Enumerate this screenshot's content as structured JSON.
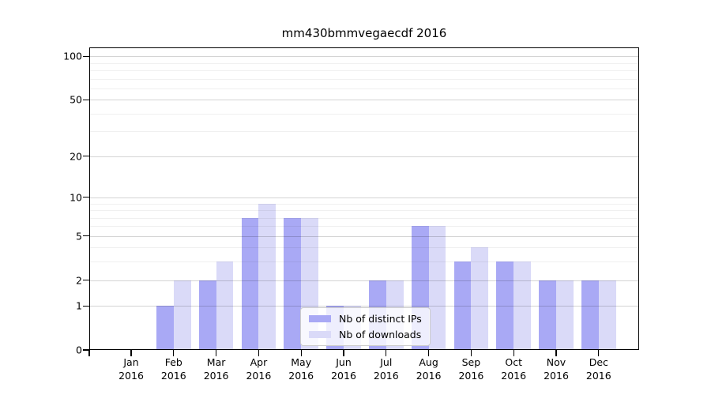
{
  "figure": {
    "title": "mm430bmmvegaecdf 2016",
    "background_color": "#ffffff",
    "axis_color": "#000000"
  },
  "legend": {
    "position": "lower center",
    "items": [
      {
        "label": "Nb of distinct IPs",
        "color": "#a9a9f5"
      },
      {
        "label": "Nb of downloads",
        "color": "#dadaf8"
      }
    ]
  },
  "chart_data": {
    "type": "bar",
    "title": "mm430bmmvegaecdf 2016",
    "xlabel": "",
    "ylabel": "",
    "x_labels": [
      {
        "month": "Jan",
        "year": "2016"
      },
      {
        "month": "Feb",
        "year": "2016"
      },
      {
        "month": "Mar",
        "year": "2016"
      },
      {
        "month": "Apr",
        "year": "2016"
      },
      {
        "month": "May",
        "year": "2016"
      },
      {
        "month": "Jun",
        "year": "2016"
      },
      {
        "month": "Jul",
        "year": "2016"
      },
      {
        "month": "Aug",
        "year": "2016"
      },
      {
        "month": "Sep",
        "year": "2016"
      },
      {
        "month": "Oct",
        "year": "2016"
      },
      {
        "month": "Nov",
        "year": "2016"
      },
      {
        "month": "Dec",
        "year": "2016"
      }
    ],
    "series": [
      {
        "name": "Nb of distinct IPs",
        "color": "#a9a9f5",
        "values": [
          0,
          1,
          2,
          7,
          7,
          1,
          2,
          6,
          3,
          3,
          2,
          2
        ]
      },
      {
        "name": "Nb of downloads",
        "color": "#dadaf8",
        "values": [
          0,
          2,
          3,
          9,
          7,
          1,
          2,
          6,
          4,
          3,
          2,
          2
        ]
      }
    ],
    "yscale": "log1p",
    "ylim": [
      0,
      112
    ],
    "yticks": [
      0,
      1,
      2,
      5,
      10,
      20,
      50,
      100
    ],
    "yticks_minor": [
      3,
      4,
      6,
      7,
      8,
      9,
      30,
      40,
      60,
      70,
      80,
      90
    ],
    "grid": "horizontal",
    "grid_above_bars": true,
    "legend_position": "lower center"
  }
}
